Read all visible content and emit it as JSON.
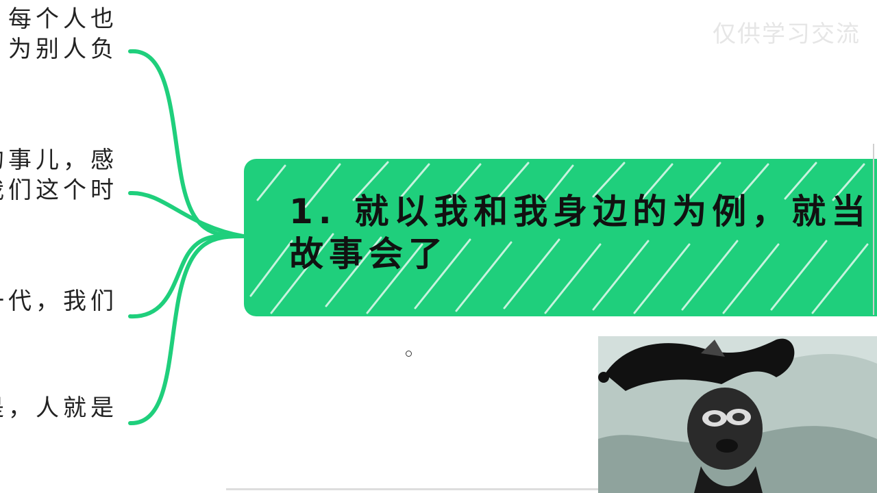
{
  "mindmap": {
    "central_node": {
      "line1": "1. 就以我和我身边的为例，就当",
      "line2": "故事会了"
    },
    "branches": [
      {
        "line1": "每个人也",
        "line2": "为别人负"
      },
      {
        "line1": "的事儿，感",
        "line2": "我们这个时"
      },
      {
        "line1": "一代，我们"
      },
      {
        "line1": "是，人就是"
      }
    ]
  },
  "watermark": "仅供学习交流",
  "colors": {
    "accent_green": "#1fcf7c",
    "text": "#222222",
    "background": "#ffffff"
  },
  "photo": {
    "description_icon": "jester-hat-dog-image"
  }
}
